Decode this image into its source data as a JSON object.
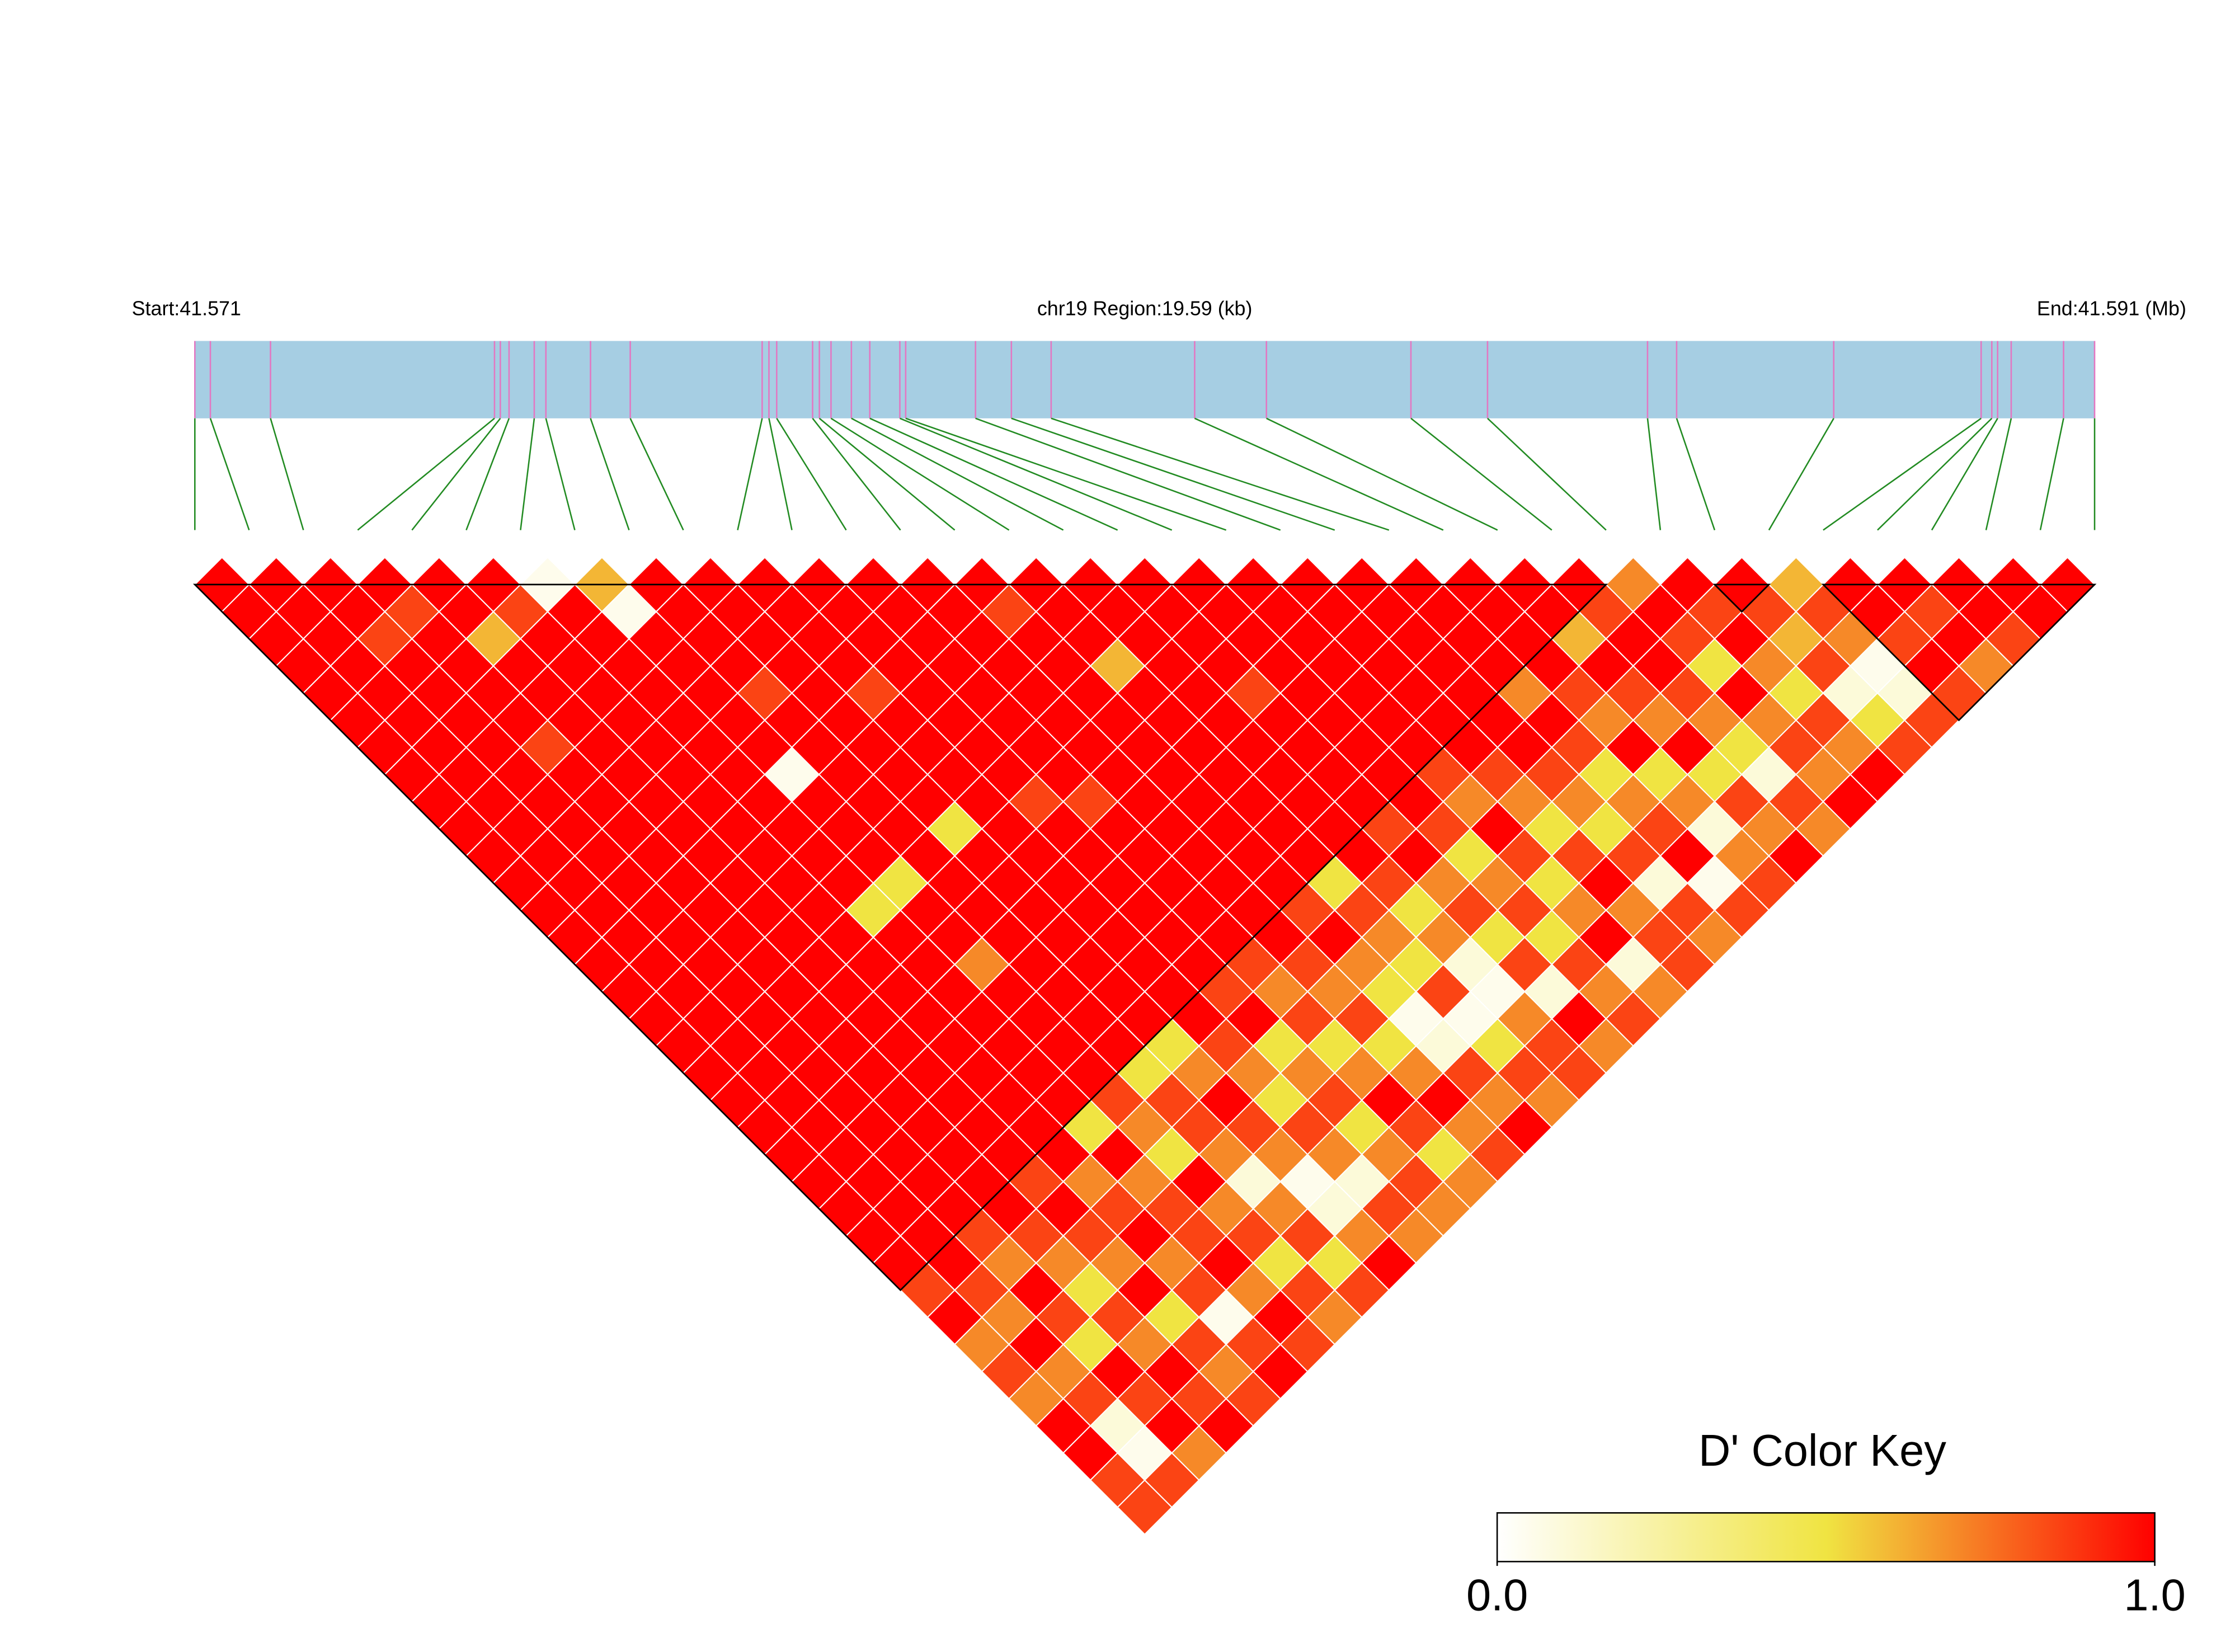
{
  "chart_data": {
    "type": "ld_heatmap",
    "start_label": "Start:41.571",
    "region_label": "chr19 Region:19.59 (kb)",
    "end_label": "End:41.591 (Mb)",
    "xlim": [
      0,
      19.59
    ],
    "snp_positions_kb": [
      0,
      0.16,
      0.78,
      3.09,
      3.15,
      3.24,
      3.5,
      3.62,
      4.08,
      4.49,
      5.85,
      5.92,
      6.0,
      6.37,
      6.44,
      6.56,
      6.77,
      6.96,
      7.27,
      7.33,
      8.05,
      8.42,
      8.83,
      10.31,
      11.05,
      12.54,
      13.33,
      14.98,
      15.28,
      16.9,
      18.42,
      18.53,
      18.59,
      18.73,
      19.27,
      19.59
    ],
    "ld_matrix": [
      [
        1,
        1,
        1,
        1,
        1,
        1,
        1,
        1,
        1,
        1,
        1,
        1,
        1,
        1,
        1,
        1,
        1,
        1,
        1,
        1,
        1,
        1,
        1,
        1,
        1,
        1,
        0.85,
        1,
        0.7,
        0.85,
        0.7,
        1,
        1,
        0.85,
        0.85
      ],
      [
        1,
        1,
        1,
        1,
        1,
        1,
        1,
        1,
        1,
        1,
        1,
        1,
        1,
        1,
        1,
        1,
        1,
        1,
        1,
        1,
        1,
        1,
        1,
        1,
        1,
        1,
        0.85,
        0.7,
        1,
        0.7,
        0.85,
        0.1,
        0.05,
        0.85
      ],
      [
        1,
        1,
        0.85,
        1,
        1,
        1,
        1,
        1,
        1,
        1,
        1,
        1,
        1,
        1,
        1,
        1,
        1,
        1,
        1,
        1,
        1,
        1,
        1,
        1,
        0.85,
        0.7,
        1,
        0.85,
        0.5,
        1,
        0.85,
        1,
        0.7
      ],
      [
        1,
        0.85,
        1,
        1,
        1,
        1,
        0.85,
        1,
        1,
        1,
        1,
        1,
        1,
        1,
        1,
        1,
        1,
        1,
        1,
        1,
        1,
        1,
        1,
        1,
        0.85,
        0.7,
        0.5,
        0.85,
        0.7,
        1,
        0.85,
        1
      ],
      [
        1,
        1,
        0.6,
        1,
        1,
        1,
        1,
        1,
        1,
        1,
        1,
        1,
        1,
        1,
        1,
        1,
        1,
        1,
        1,
        1,
        1,
        1,
        0.85,
        1,
        0.85,
        0.7,
        1,
        0.5,
        0.85,
        0.7,
        0.85
      ],
      [
        1,
        0.85,
        1,
        1,
        1,
        1,
        1,
        1,
        1,
        1,
        1,
        1,
        1,
        1,
        1,
        1,
        1,
        1,
        1,
        1,
        1,
        1,
        0.7,
        0.85,
        1,
        0.7,
        0.85,
        0.05,
        0.85,
        1
      ],
      [
        0.05,
        1,
        1,
        1,
        1,
        1,
        1,
        1,
        1,
        1,
        1,
        1,
        0.5,
        1,
        1,
        1,
        1,
        1,
        1,
        1,
        0.5,
        1,
        0.7,
        0.85,
        0.85,
        1,
        0.7,
        1,
        0.85
      ],
      [
        0.6,
        0.05,
        1,
        1,
        1,
        1,
        1,
        0.05,
        1,
        1,
        1,
        0.5,
        1,
        1,
        0.7,
        1,
        1,
        1,
        1,
        0.85,
        0.7,
        0.5,
        1,
        0.7,
        0.85,
        0.5,
        0.85,
        0.7
      ],
      [
        1,
        1,
        1,
        1,
        0.85,
        1,
        1,
        1,
        1,
        1,
        1,
        1,
        1,
        1,
        1,
        1,
        1,
        1,
        0.5,
        0.85,
        0.85,
        0.7,
        0.1,
        0.7,
        0.85,
        0.5,
        0.85
      ],
      [
        1,
        1,
        1,
        1,
        1,
        1,
        1,
        1,
        1,
        0.5,
        1,
        1,
        1,
        1,
        1,
        1,
        1,
        0.5,
        0.7,
        1,
        0.85,
        0.7,
        0.05,
        0.1,
        0.7,
        1
      ],
      [
        1,
        1,
        1,
        1,
        0.85,
        1,
        1,
        1,
        1,
        1,
        1,
        1,
        1,
        1,
        1,
        1,
        1,
        0.85,
        0.7,
        0.5,
        0.85,
        0.7,
        0.1,
        0.85,
        0.7
      ],
      [
        1,
        1,
        1,
        1,
        1,
        1,
        1,
        1,
        0.85,
        1,
        1,
        1,
        1,
        1,
        1,
        0.85,
        1,
        0.5,
        0.7,
        0.85,
        0.5,
        0.7,
        0.85,
        0.7
      ],
      [
        1,
        1,
        1,
        1,
        1,
        1,
        1,
        1,
        0.85,
        1,
        1,
        1,
        1,
        1,
        0.85,
        0.7,
        0.85,
        0.5,
        0.7,
        1,
        0.85,
        0.5,
        0.7
      ],
      [
        1,
        1,
        1,
        1,
        1,
        1,
        1,
        1,
        1,
        1,
        1,
        1,
        1,
        1,
        0.85,
        0.7,
        0.85,
        0.5,
        0.7,
        1,
        0.7,
        0.85
      ],
      [
        1,
        0.85,
        1,
        1,
        1,
        1,
        1,
        1,
        1,
        1,
        1,
        1,
        0.85,
        1,
        0.7,
        0.5,
        0.05,
        0.1,
        0.85,
        0.7,
        1
      ],
      [
        1,
        1,
        1,
        0.6,
        1,
        1,
        1,
        1,
        1,
        1,
        1,
        0.5,
        0.85,
        0.7,
        0.5,
        0.85,
        0.05,
        0.5,
        0.85,
        0.7
      ],
      [
        1,
        1,
        1,
        1,
        1,
        1,
        1,
        1,
        1,
        1,
        1,
        0.85,
        0.5,
        0.7,
        0.1,
        0.05,
        0.7,
        0.85,
        0.85
      ],
      [
        1,
        1,
        1,
        1,
        0.85,
        1,
        1,
        1,
        1,
        0.85,
        1,
        0.7,
        0.85,
        0.5,
        0.85,
        0.1,
        1,
        0.7
      ],
      [
        1,
        1,
        1,
        1,
        1,
        1,
        1,
        1,
        1,
        0.85,
        0.5,
        0.7,
        0.85,
        0.5,
        0.85,
        0.7,
        0.85
      ],
      [
        1,
        1,
        1,
        1,
        1,
        1,
        1,
        0.85,
        0.7,
        1,
        0.85,
        0.5,
        0.7,
        1,
        0.1,
        0.7
      ],
      [
        1,
        1,
        1,
        1,
        1,
        1,
        1,
        0.85,
        0.7,
        0.5,
        0.85,
        1,
        0.7,
        0.85,
        0.85
      ],
      [
        1,
        1,
        1,
        1,
        1,
        1,
        1,
        0.85,
        0.7,
        0.5,
        0.85,
        0.1,
        0.85,
        0.7
      ],
      [
        1,
        1,
        1,
        1,
        0.7,
        1,
        0.85,
        0.5,
        0.7,
        0.85,
        1,
        0.05,
        0.85
      ],
      [
        1,
        1,
        1,
        1,
        0.85,
        0.7,
        1,
        0.5,
        0.7,
        0.1,
        0.7,
        0.85
      ],
      [
        1,
        1,
        0.6,
        1,
        0.85,
        0.7,
        1,
        0.5,
        0.85,
        0.7,
        1
      ],
      [
        1,
        0.85,
        1,
        1,
        0.85,
        0.7,
        0.5,
        0.1,
        0.85,
        0.7
      ],
      [
        0.7,
        1,
        0.85,
        0.5,
        1,
        0.7,
        0.85,
        0.7,
        1
      ],
      [
        1,
        0.85,
        1,
        0.7,
        0.5,
        0.85,
        0.7,
        1
      ],
      [
        1,
        0.85,
        0.6,
        0.85,
        0.1,
        0.5,
        0.85
      ],
      [
        0.6,
        0.85,
        0.7,
        0.05,
        0.1,
        0.85
      ],
      [
        1,
        1,
        0.85,
        1,
        0.85
      ],
      [
        1,
        0.85,
        1,
        0.7
      ],
      [
        1,
        1,
        0.85
      ],
      [
        1,
        1
      ],
      [
        1
      ]
    ],
    "blocks": [
      [
        0,
        26
      ],
      [
        28,
        29
      ],
      [
        30,
        35
      ]
    ],
    "colorscale": [
      [
        0,
        "#ffffff"
      ],
      [
        0.5,
        "#f0e442"
      ],
      [
        1,
        "#ff0000"
      ]
    ],
    "gene_color": "#a6cee3",
    "snp_tick_color": "#e377c2",
    "connector_color": "#228b22",
    "key_title": "D' Color Key",
    "key_lim": [
      0,
      1
    ],
    "key_ticks": [
      {
        "value": 0,
        "label": "0.0"
      },
      {
        "value": 1,
        "label": "1.0"
      }
    ]
  }
}
